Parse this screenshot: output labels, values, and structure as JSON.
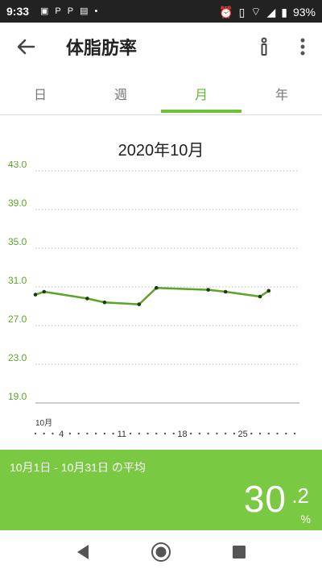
{
  "status_bar": {
    "time": "9:33",
    "battery": "93%",
    "left_icons": [
      "image-icon",
      "parking-icon",
      "parking-icon",
      "news-icon",
      "dot-icon"
    ],
    "right_icons": [
      "alarm-icon",
      "vibrate-icon",
      "wifi-icon",
      "signal-icon",
      "battery-icon"
    ]
  },
  "app_bar": {
    "title": "体脂肪率"
  },
  "tabs": [
    {
      "label": "日"
    },
    {
      "label": "週"
    },
    {
      "label": "月",
      "active": true
    },
    {
      "label": "年"
    }
  ],
  "chart_data": {
    "type": "line",
    "title": "2020年10月",
    "y_ticks": [
      "43.0",
      "39.0",
      "35.0",
      "31.0",
      "27.0",
      "23.0",
      "19.0"
    ],
    "ylim": [
      19.0,
      43.0
    ],
    "x_month_label": "10月",
    "x_tick_labels": [
      {
        "day": 4,
        "label": "4"
      },
      {
        "day": 11,
        "label": "11"
      },
      {
        "day": 18,
        "label": "18"
      },
      {
        "day": 25,
        "label": "25"
      }
    ],
    "xlim": [
      1,
      31
    ],
    "accent_color": "#5aa528",
    "series": [
      {
        "points": [
          {
            "day": 1,
            "value": 30.2
          },
          {
            "day": 2,
            "value": 30.5
          },
          {
            "day": 7,
            "value": 29.8
          },
          {
            "day": 9,
            "value": 29.4
          },
          {
            "day": 13,
            "value": 29.2
          },
          {
            "day": 15,
            "value": 30.9
          },
          {
            "day": 21,
            "value": 30.7
          },
          {
            "day": 23,
            "value": 30.5
          },
          {
            "day": 27,
            "value": 30.0
          },
          {
            "day": 28,
            "value": 30.6
          }
        ]
      }
    ]
  },
  "summary": {
    "label": "10月1日 - 10月31日 の平均",
    "value_int": "30",
    "value_dec": ".2",
    "unit": "%",
    "color": "#7ac943"
  }
}
